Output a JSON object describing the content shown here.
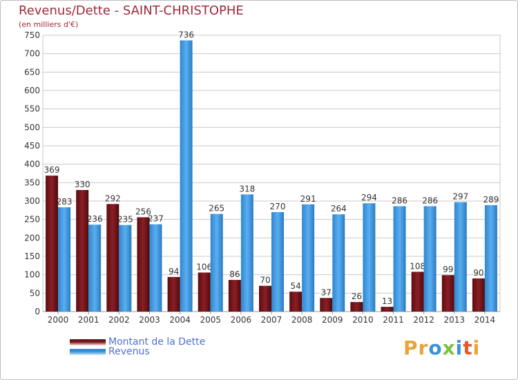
{
  "title": "Revenus/Dette - SAINT-CHRISTOPHE",
  "subtitle": "(en milliers d'€)",
  "brand": "Proxiti",
  "colors": {
    "dette": "#7d1a1f",
    "revenus": "#3a93d8",
    "title": "#a0283a",
    "legend_text": "#4d6fd8",
    "grid": "#c8c8c8"
  },
  "legend": [
    {
      "label": "Montant de la Dette",
      "color": "#7d1a1f"
    },
    {
      "label": "Revenus",
      "color": "#3a93d8"
    }
  ],
  "chart_data": {
    "type": "bar",
    "categories": [
      "2000",
      "2001",
      "2002",
      "2003",
      "2004",
      "2005",
      "2006",
      "2007",
      "2008",
      "2009",
      "2010",
      "2011",
      "2012",
      "2013",
      "2014"
    ],
    "series": [
      {
        "name": "Montant de la Dette",
        "values": [
          369,
          330,
          292,
          256,
          94,
          106,
          86,
          70,
          54,
          37,
          26,
          13,
          108,
          99,
          90
        ]
      },
      {
        "name": "Revenus",
        "values": [
          283,
          236,
          235,
          237,
          736,
          265,
          318,
          270,
          291,
          264,
          294,
          286,
          286,
          297,
          289
        ]
      }
    ],
    "ylim": [
      0,
      750
    ],
    "yticks": [
      0,
      50,
      100,
      150,
      200,
      250,
      300,
      350,
      400,
      450,
      500,
      550,
      600,
      650,
      700,
      750
    ],
    "grid": true,
    "legend_position": "bottom-left"
  }
}
